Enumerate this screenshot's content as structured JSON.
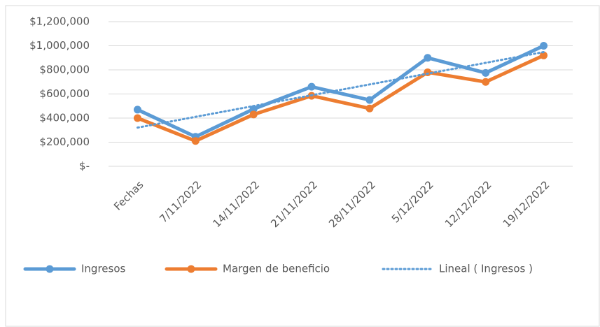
{
  "chart_data": {
    "type": "line",
    "categories": [
      "Fechas",
      "7/11/2022",
      "14/11/2022",
      "21/11/2022",
      "28/11/2022",
      "5/12/2022",
      "12/12/2022",
      "19/12/2022"
    ],
    "series": [
      {
        "name": "Ingresos",
        "color": "#5b9bd5",
        "values": [
          470000,
          245000,
          475000,
          660000,
          550000,
          900000,
          775000,
          1000000
        ]
      },
      {
        "name": "Margen de beneficio",
        "color": "#ed7d31",
        "values": [
          400000,
          210000,
          430000,
          585000,
          480000,
          780000,
          700000,
          920000
        ]
      }
    ],
    "trendline": {
      "name": "Lineal ( Ingresos )",
      "series": 0,
      "color": "#5b9bd5"
    },
    "ylim": [
      0,
      1200000
    ],
    "yticks": [
      {
        "value": 0,
        "label": "$-"
      },
      {
        "value": 200000,
        "label": "$200,000"
      },
      {
        "value": 400000,
        "label": "$400,000"
      },
      {
        "value": 600000,
        "label": "$600,000"
      },
      {
        "value": 800000,
        "label": "$800,000"
      },
      {
        "value": 1000000,
        "label": "$1,000,000"
      },
      {
        "value": 1200000,
        "label": "$1,200,000"
      }
    ],
    "grid": true
  }
}
